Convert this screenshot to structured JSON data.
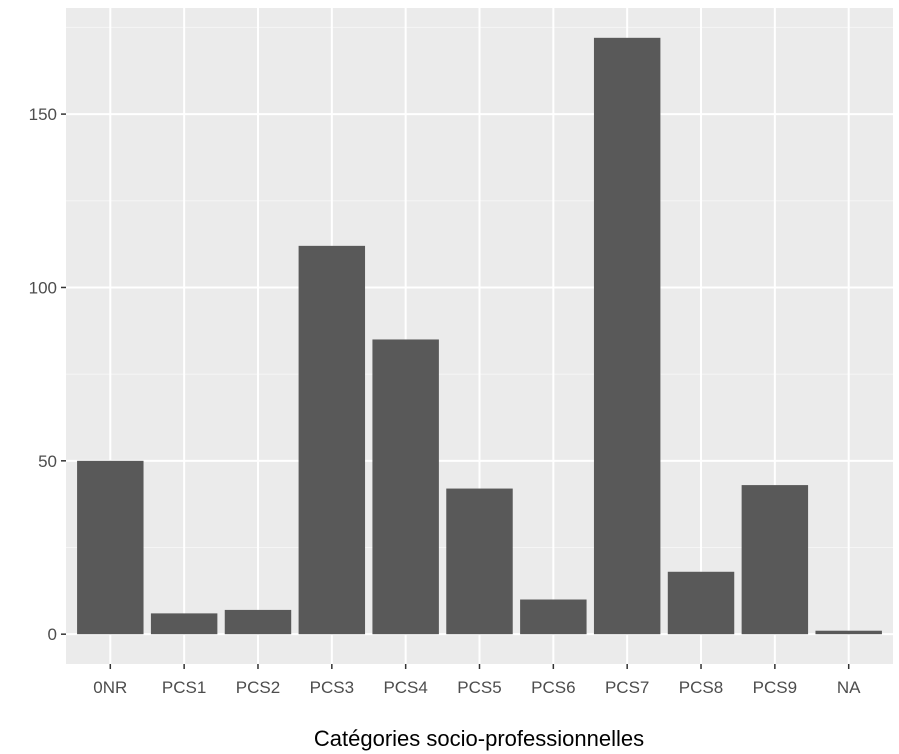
{
  "chart_data": {
    "type": "bar",
    "title": "",
    "xlabel": "Catégories socio-professionnelles",
    "ylabel": "",
    "categories": [
      "0NR",
      "PCS1",
      "PCS2",
      "PCS3",
      "PCS4",
      "PCS5",
      "PCS6",
      "PCS7",
      "PCS8",
      "PCS9",
      "NA"
    ],
    "values": [
      50,
      6,
      7,
      112,
      85,
      42,
      10,
      172,
      18,
      43,
      1
    ],
    "y_ticks": [
      0,
      50,
      100,
      150
    ],
    "ylim": [
      -8.6,
      180.6
    ],
    "grid": true,
    "legend": "none"
  },
  "colors": {
    "panel_background": "#ebebeb",
    "grid_major": "#ffffff",
    "grid_minor": "#f5f5f5",
    "bar_fill": "#595959",
    "tick_text": "#4d4d4d",
    "title_text": "#000000"
  }
}
